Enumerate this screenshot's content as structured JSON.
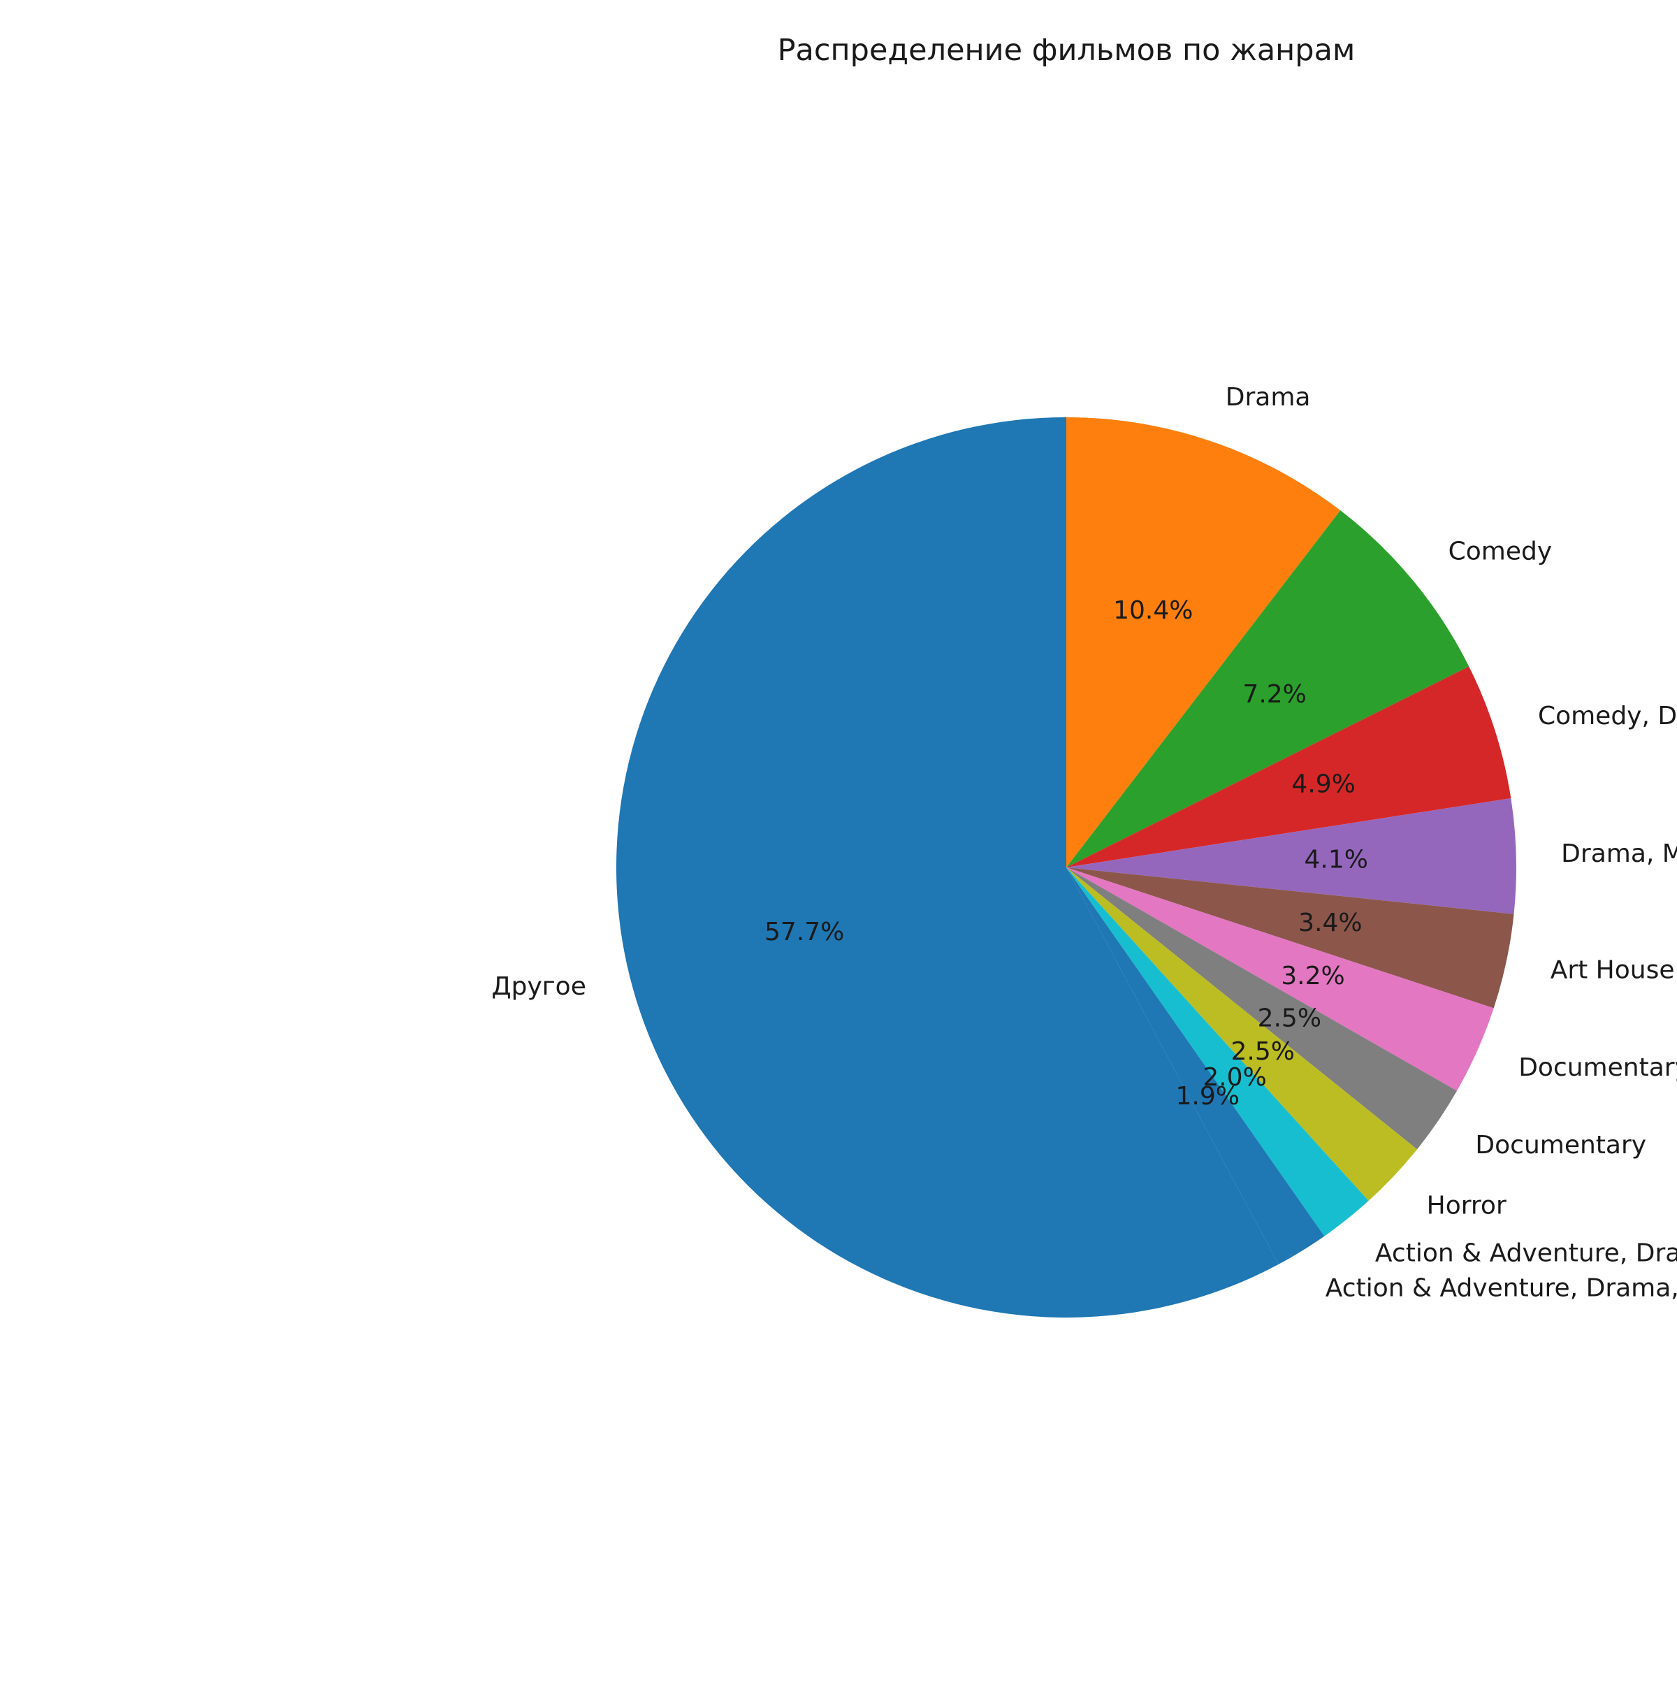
{
  "chart_data": {
    "type": "pie",
    "title": "Распределение фильмов по жанрам",
    "start_angle_deg": 90,
    "direction": "clockwise",
    "slices": [
      {
        "label": "Drama",
        "value": 10.4,
        "pct_label": "10.4%",
        "color": "#ff7f0e"
      },
      {
        "label": "Comedy",
        "value": 7.2,
        "pct_label": "7.2%",
        "color": "#2ca02c"
      },
      {
        "label": "Comedy, Drama",
        "value": 4.9,
        "pct_label": "4.9%",
        "color": "#d62728"
      },
      {
        "label": "Drama, Mystery & Suspense",
        "value": 4.1,
        "pct_label": "4.1%",
        "color": "#9467bd"
      },
      {
        "label": "Art House & International, Drama",
        "value": 3.4,
        "pct_label": "3.4%",
        "color": "#8c564b"
      },
      {
        "label": "Documentary, Special Interest",
        "value": 3.2,
        "pct_label": "3.2%",
        "color": "#e377c2"
      },
      {
        "label": "Documentary",
        "value": 2.5,
        "pct_label": "2.5%",
        "color": "#7f7f7f"
      },
      {
        "label": "Horror",
        "value": 2.5,
        "pct_label": "2.5%",
        "color": "#bcbd22"
      },
      {
        "label": "Action & Adventure, Drama",
        "value": 2.0,
        "pct_label": "2.0%",
        "color": "#17becf"
      },
      {
        "label": "Action & Adventure, Drama, Mystery & Suspense",
        "value": 1.9,
        "pct_label": "1.9%",
        "color": "#1f77b4"
      },
      {
        "label": "Другое",
        "value": 57.7,
        "pct_label": "57.7%",
        "color": "#1f77b4"
      }
    ]
  }
}
